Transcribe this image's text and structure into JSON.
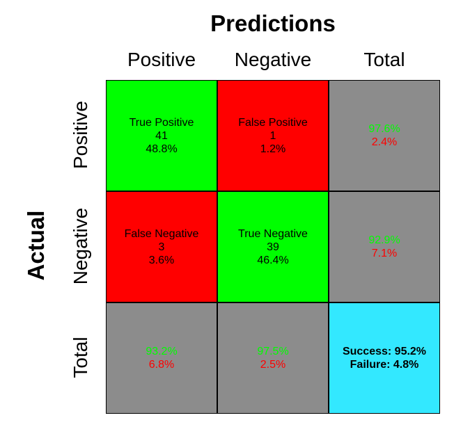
{
  "title": "Predictions",
  "columns": [
    "Positive",
    "Negative",
    "Total"
  ],
  "rows": [
    "Positive",
    "Negative",
    "Total"
  ],
  "row_axis_title": "Actual",
  "colors": {
    "good": "#00ff00",
    "bad": "#ff0000",
    "neutral": "#8c8c8c",
    "summary": "#33e8ff",
    "good_text": "#00ff00",
    "bad_text": "#ff0000"
  },
  "chart_data": {
    "type": "table",
    "cells": {
      "tp": {
        "label": "True Positive",
        "count": "41",
        "pct": "48.8%"
      },
      "fp": {
        "label": "False Positive",
        "count": "1",
        "pct": "1.2%"
      },
      "fn": {
        "label": "False Negative",
        "count": "3",
        "pct": "3.6%"
      },
      "tn": {
        "label": "True Negative",
        "count": "39",
        "pct": "46.4%"
      }
    },
    "row_totals": [
      {
        "good": "97.6%",
        "bad": "2.4%"
      },
      {
        "good": "92.9%",
        "bad": "7.1%"
      }
    ],
    "col_totals": [
      {
        "good": "93.2%",
        "bad": "6.8%"
      },
      {
        "good": "97.5%",
        "bad": "2.5%"
      }
    ],
    "overall": {
      "success": "Success: 95.2%",
      "failure": "Failure: 4.8%"
    }
  }
}
